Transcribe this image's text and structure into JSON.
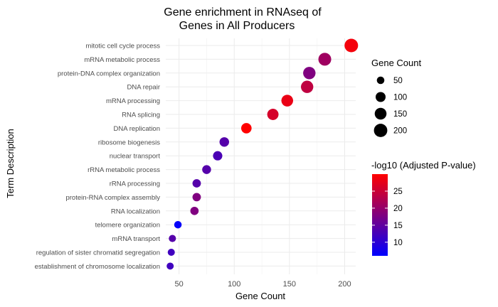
{
  "chart_data": {
    "type": "scatter",
    "title_lines": [
      "Gene enrichment in RNAseq of",
      "Genes in All Producers"
    ],
    "xlabel": "Gene Count",
    "ylabel": "Term Description",
    "xlim": [
      38,
      210
    ],
    "x_ticks": [
      50,
      100,
      150,
      200
    ],
    "grid": true,
    "color_scale": {
      "low": "#0000ff",
      "high": "#ff0000",
      "range": [
        6,
        30
      ]
    },
    "points": [
      {
        "term": "mitotic cell cycle process",
        "count": 206,
        "neg_log10_p": 29
      },
      {
        "term": "mRNA metabolic process",
        "count": 182,
        "neg_log10_p": 21
      },
      {
        "term": "protein-DNA complex organization",
        "count": 168,
        "neg_log10_p": 18
      },
      {
        "term": "DNA repair",
        "count": 166,
        "neg_log10_p": 24
      },
      {
        "term": "mRNA processing",
        "count": 148,
        "neg_log10_p": 28
      },
      {
        "term": "RNA splicing",
        "count": 135,
        "neg_log10_p": 26
      },
      {
        "term": "DNA replication",
        "count": 111,
        "neg_log10_p": 30
      },
      {
        "term": "ribosome biogenesis",
        "count": 91,
        "neg_log10_p": 14
      },
      {
        "term": "nuclear transport",
        "count": 85,
        "neg_log10_p": 13
      },
      {
        "term": "rRNA metabolic process",
        "count": 75,
        "neg_log10_p": 14
      },
      {
        "term": "rRNA processing",
        "count": 66,
        "neg_log10_p": 14
      },
      {
        "term": "protein-RNA complex assembly",
        "count": 66,
        "neg_log10_p": 18
      },
      {
        "term": "RNA localization",
        "count": 64,
        "neg_log10_p": 18
      },
      {
        "term": "telomere organization",
        "count": 49,
        "neg_log10_p": 6.5
      },
      {
        "term": "mRNA transport",
        "count": 44,
        "neg_log10_p": 14
      },
      {
        "term": "regulation of sister chromatid segregation",
        "count": 43,
        "neg_log10_p": 12
      },
      {
        "term": "establishment of chromosome localization",
        "count": 42,
        "neg_log10_p": 12
      }
    ],
    "size_legend": {
      "title": "Gene Count",
      "entries": [
        {
          "label": "50",
          "value": 50
        },
        {
          "label": "100",
          "value": 100
        },
        {
          "label": "150",
          "value": 150
        },
        {
          "label": "200",
          "value": 200
        }
      ]
    },
    "color_legend": {
      "title": "-log10 (Adjusted P-value)",
      "entries": [
        {
          "label": "25",
          "value": 25
        },
        {
          "label": "20",
          "value": 20
        },
        {
          "label": "15",
          "value": 15
        },
        {
          "label": "10",
          "value": 10
        }
      ]
    }
  }
}
